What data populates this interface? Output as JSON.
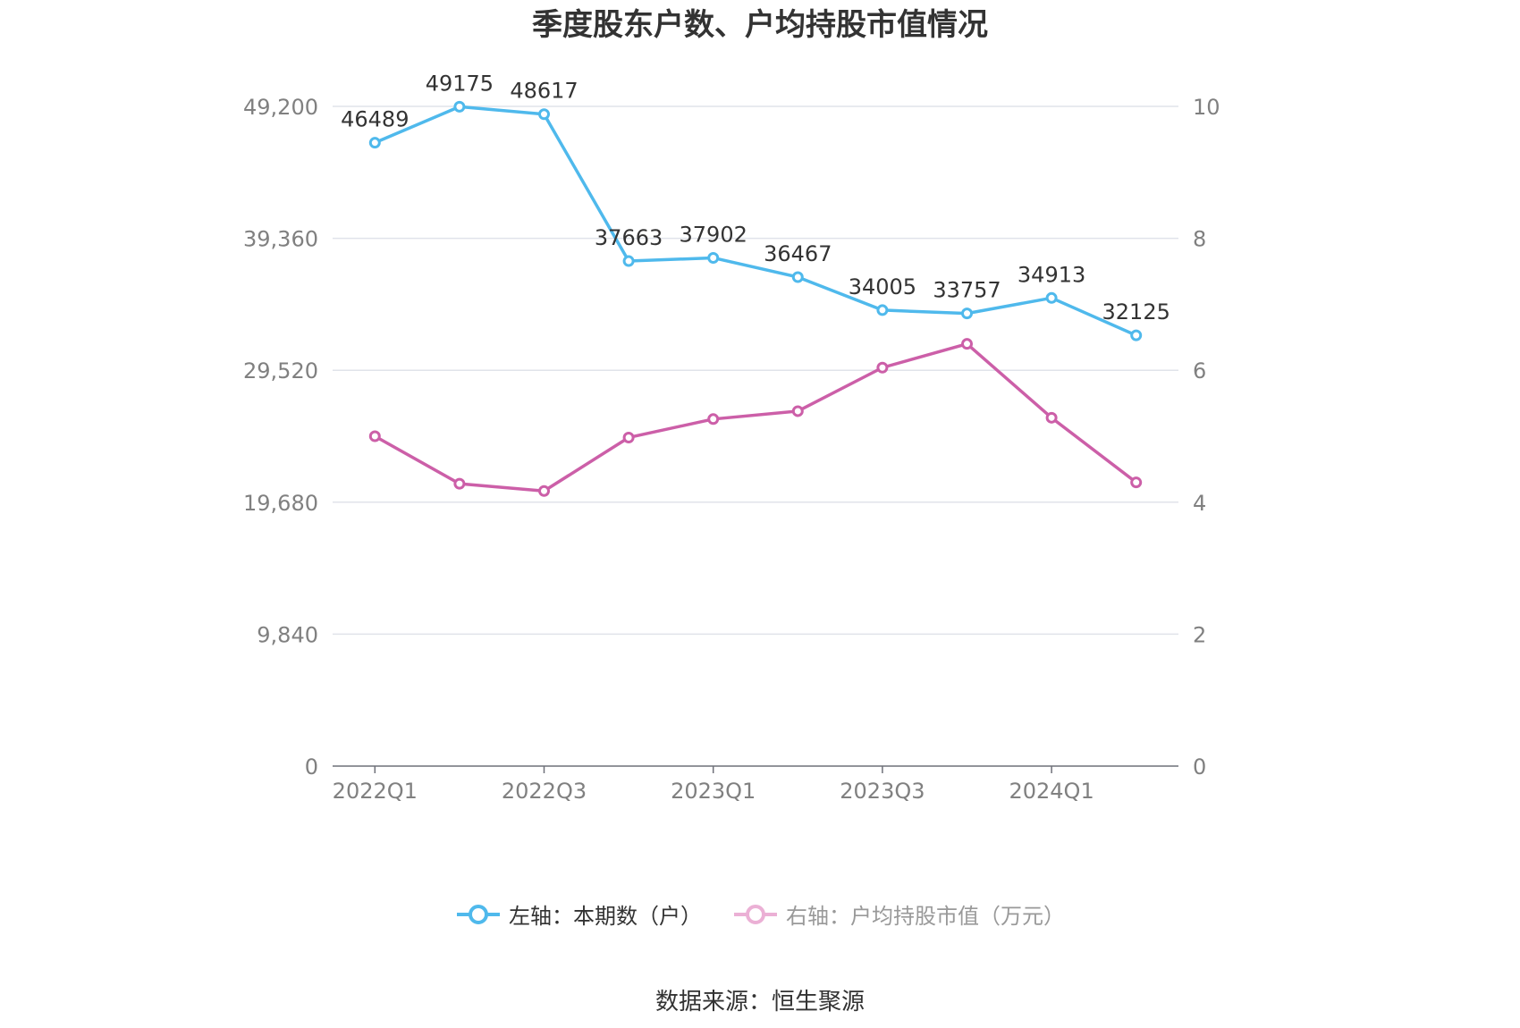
{
  "chart_data": {
    "type": "line",
    "title": "季度股东户数、户均持股市值情况",
    "categories": [
      "2022Q1",
      "2022Q2",
      "2022Q3",
      "2022Q4",
      "2023Q1",
      "2023Q2",
      "2023Q3",
      "2023Q4",
      "2024Q1",
      "2024Q2"
    ],
    "x_tick_labels": [
      "2022Q1",
      "2022Q3",
      "2023Q1",
      "2023Q3",
      "2024Q1"
    ],
    "left_axis": {
      "ylim": [
        0,
        49200
      ],
      "ticks": [
        "0",
        "9,840",
        "19,680",
        "29,520",
        "39,360",
        "49,200"
      ]
    },
    "right_axis": {
      "ylim": [
        0,
        10
      ],
      "ticks": [
        "0",
        "2",
        "4",
        "6",
        "8",
        "10"
      ]
    },
    "grid": true,
    "legend_position": "bottom",
    "series": [
      {
        "name": "左轴：本期数（户）",
        "axis": "left",
        "color": "#4fb9ec",
        "values": [
          46489,
          49175,
          48617,
          37663,
          37902,
          36467,
          34005,
          33757,
          34913,
          32125
        ],
        "labels": [
          "46489",
          "49175",
          "48617",
          "37663",
          "37902",
          "36467",
          "34005",
          "33757",
          "34913",
          "32125"
        ]
      },
      {
        "name": "右轴：户均持股市值（万元）",
        "axis": "right",
        "color": "#cc5fa8",
        "values": [
          5.0,
          4.28,
          4.17,
          4.98,
          5.26,
          5.38,
          6.04,
          6.4,
          5.28,
          4.3
        ]
      }
    ]
  },
  "source": "数据来源：恒生聚源"
}
